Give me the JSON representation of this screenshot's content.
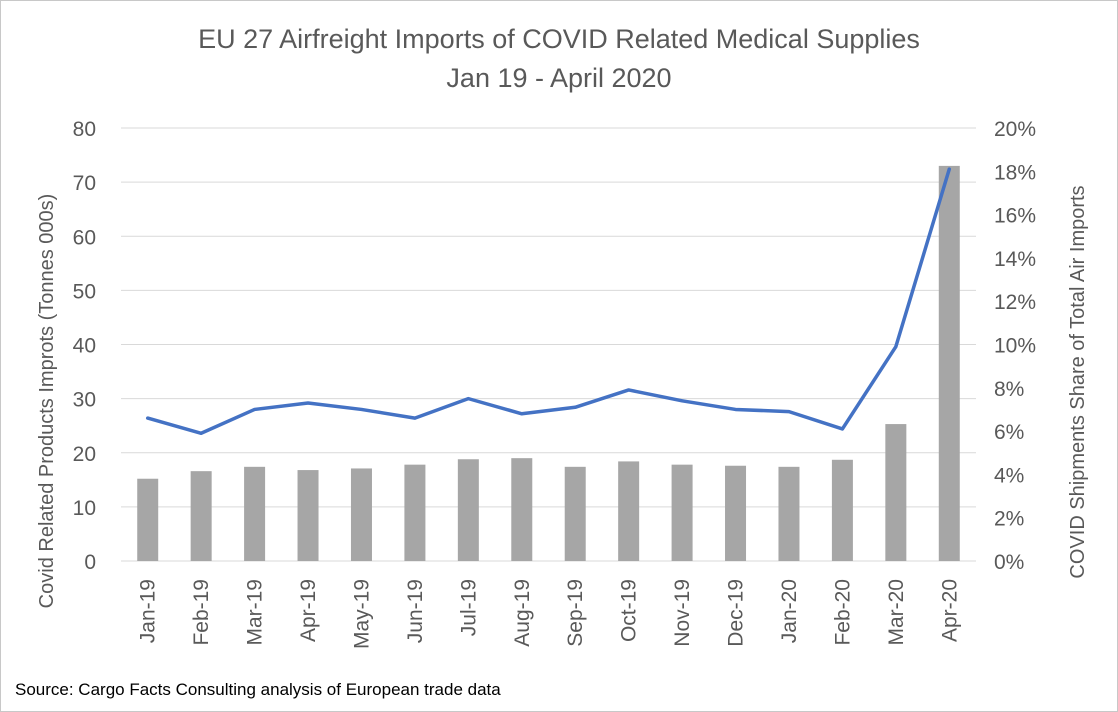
{
  "chart_data": {
    "type": "bar",
    "title_line1": "EU 27 Airfreight Imports of COVID Related Medical Supplies",
    "title_line2": "Jan 19 - April 2020",
    "categories": [
      "Jan-19",
      "Feb-19",
      "Mar-19",
      "Apr-19",
      "May-19",
      "Jun-19",
      "Jul-19",
      "Aug-19",
      "Sep-19",
      "Oct-19",
      "Nov-19",
      "Dec-19",
      "Jan-20",
      "Feb-20",
      "Mar-20",
      "Apr-20"
    ],
    "series": [
      {
        "type": "bar",
        "axis": "left",
        "values": [
          15.2,
          16.6,
          17.4,
          16.8,
          17.1,
          17.8,
          18.8,
          19.0,
          17.4,
          18.4,
          17.8,
          17.6,
          17.4,
          18.7,
          25.3,
          73.0
        ]
      },
      {
        "type": "line",
        "axis": "right",
        "values": [
          6.6,
          5.9,
          7.0,
          7.3,
          7.0,
          6.6,
          7.5,
          6.8,
          7.1,
          7.9,
          7.4,
          7.0,
          6.9,
          6.1,
          9.9,
          18.1
        ]
      }
    ],
    "ylabel": "Covid Related Products Improts  (Tonnes 000s)",
    "y2label": "COVID Shipments Share of Total Air Imports",
    "ylim": [
      0,
      80
    ],
    "yticks": [
      "0",
      "10",
      "20",
      "30",
      "40",
      "50",
      "60",
      "70",
      "80"
    ],
    "y2lim": [
      0,
      20
    ],
    "y2ticks": [
      "0%",
      "2%",
      "4%",
      "6%",
      "8%",
      "10%",
      "12%",
      "14%",
      "16%",
      "18%",
      "20%"
    ],
    "grid": true,
    "source": "Source: Cargo Facts Consulting analysis of European trade data",
    "colors": {
      "bar": "#a6a6a6",
      "line": "#4472c4",
      "grid": "#d9d9d9",
      "text": "#595959"
    }
  }
}
